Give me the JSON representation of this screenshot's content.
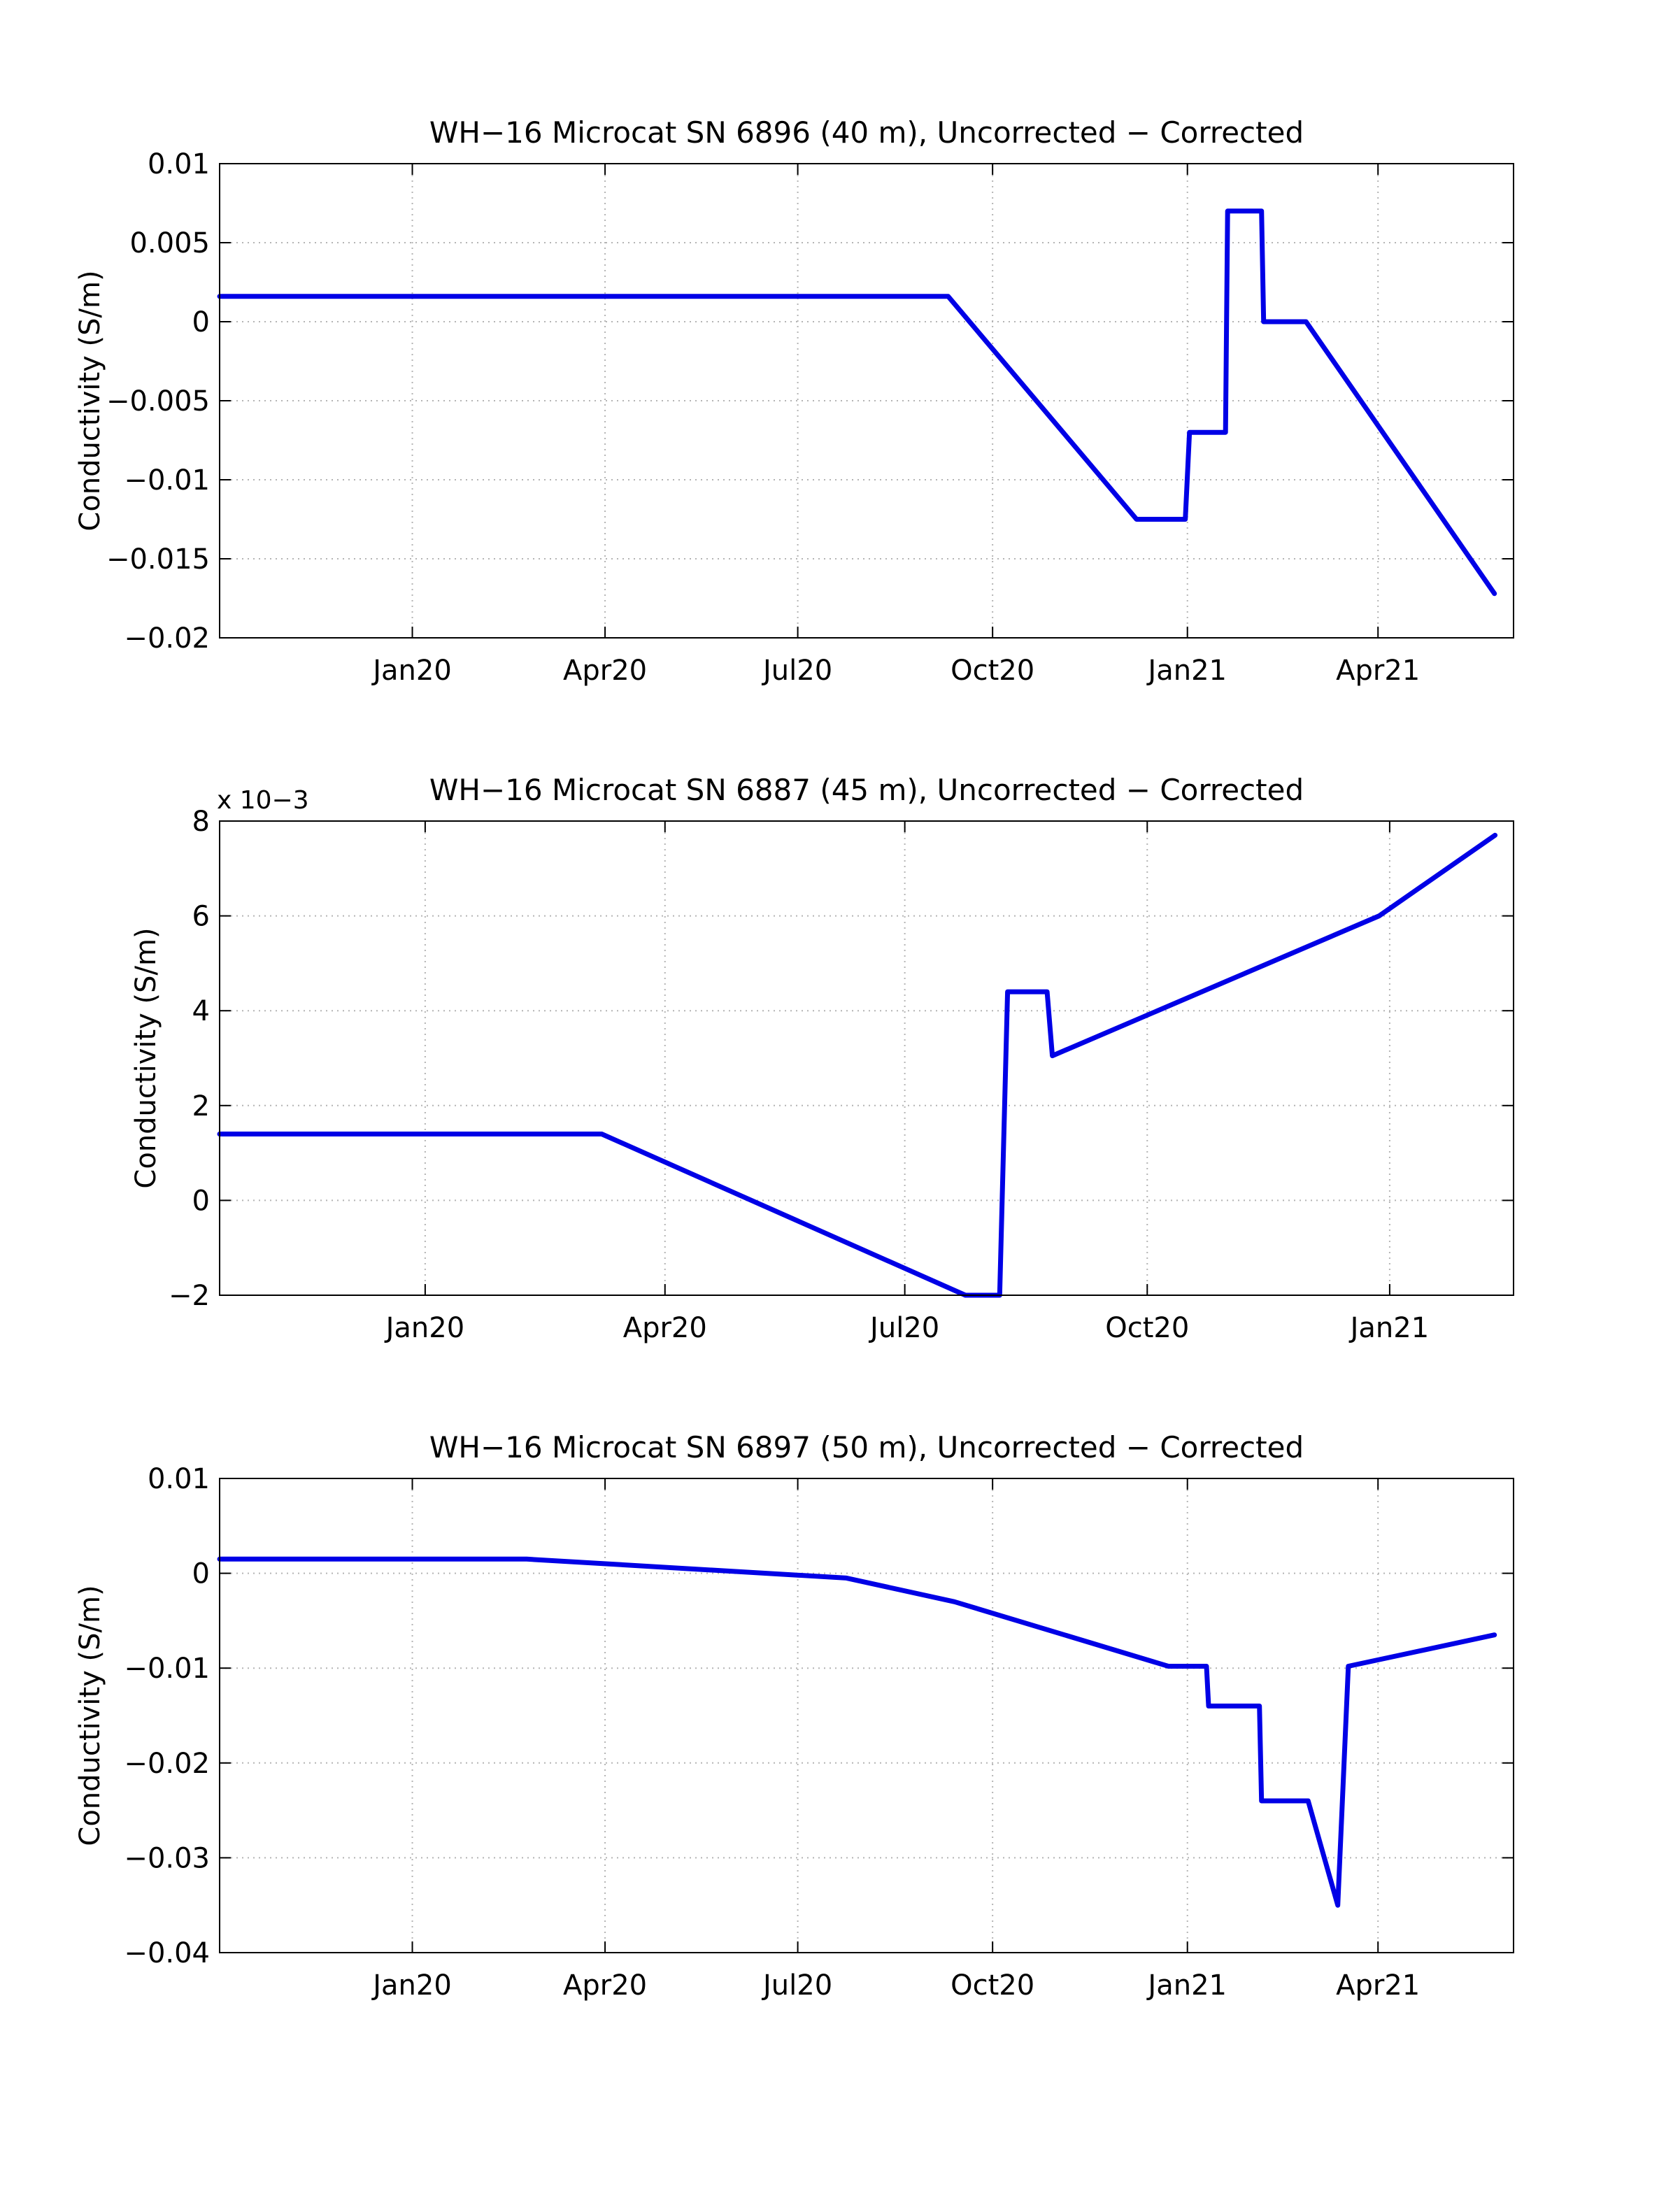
{
  "chart_data": [
    {
      "type": "line",
      "title": "WH−16 Microcat SN 6896 (40 m), Uncorrected − Corrected",
      "xlabel": "",
      "ylabel": "Conductivity (S/m)",
      "ylim": [
        -0.02,
        0.01
      ],
      "yticks": [
        -0.02,
        -0.015,
        -0.01,
        -0.005,
        0,
        0.005,
        0.01
      ],
      "ytick_labels": [
        "−0.02",
        "−0.015",
        "−0.01",
        "−0.005",
        "0",
        "0.005",
        "0.01"
      ],
      "exponent_label": "",
      "xlim": [
        "2019-10-02",
        "2021-06-04"
      ],
      "xticks": [
        "2020-01-01",
        "2020-04-01",
        "2020-07-01",
        "2020-10-01",
        "2021-01-01",
        "2021-04-01"
      ],
      "xtick_labels": [
        "Jan20",
        "Apr20",
        "Jul20",
        "Oct20",
        "Jan21",
        "Apr21"
      ],
      "grid": true,
      "series": [
        {
          "color": "#0000e6",
          "x": [
            "2019-10-02",
            "2020-09-10",
            "2020-12-08",
            "2020-12-31",
            "2021-01-02",
            "2021-01-19",
            "2021-01-20",
            "2021-02-05",
            "2021-02-06",
            "2021-02-26",
            "2021-05-26"
          ],
          "y": [
            0.0016,
            0.0016,
            -0.0125,
            -0.0125,
            -0.007,
            -0.007,
            0.007,
            0.007,
            0.0,
            0.0,
            -0.0172
          ]
        }
      ]
    },
    {
      "type": "line",
      "title": "WH−16 Microcat SN 6887 (45 m), Uncorrected − Corrected",
      "xlabel": "",
      "ylabel": "Conductivity (S/m)",
      "ylim": [
        -2,
        8
      ],
      "yticks": [
        -2,
        0,
        2,
        4,
        6,
        8
      ],
      "ytick_labels": [
        "−2",
        "0",
        "2",
        "4",
        "6",
        "8"
      ],
      "exponent_label": "x 10−3",
      "xlim": [
        "2019-10-15",
        "2021-02-17"
      ],
      "xticks": [
        "2020-01-01",
        "2020-04-01",
        "2020-07-01",
        "2020-10-01",
        "2021-01-01"
      ],
      "xtick_labels": [
        "Jan20",
        "Apr20",
        "Jul20",
        "Oct20",
        "Jan21"
      ],
      "grid": true,
      "series": [
        {
          "color": "#0000e6",
          "x": [
            "2019-10-15",
            "2020-03-08",
            "2020-07-24",
            "2020-08-06",
            "2020-08-09",
            "2020-08-24",
            "2020-08-26",
            "2020-12-28",
            "2021-02-10"
          ],
          "y": [
            1.4,
            1.4,
            -2.0,
            -2.0,
            4.4,
            4.4,
            3.05,
            6.0,
            7.7
          ]
        }
      ]
    },
    {
      "type": "line",
      "title": "WH−16 Microcat SN 6897 (50 m), Uncorrected − Corrected",
      "xlabel": "",
      "ylabel": "Conductivity (S/m)",
      "ylim": [
        -0.04,
        0.01
      ],
      "yticks": [
        -0.04,
        -0.03,
        -0.02,
        -0.01,
        0,
        0.01
      ],
      "ytick_labels": [
        "−0.04",
        "−0.03",
        "−0.02",
        "−0.01",
        "0",
        "0.01"
      ],
      "exponent_label": "",
      "xlim": [
        "2019-10-02",
        "2021-06-04"
      ],
      "xticks": [
        "2020-01-01",
        "2020-04-01",
        "2020-07-01",
        "2020-10-01",
        "2021-01-01",
        "2021-04-01"
      ],
      "xtick_labels": [
        "Jan20",
        "Apr20",
        "Jul20",
        "Oct20",
        "Jan21",
        "Apr21"
      ],
      "grid": true,
      "series": [
        {
          "color": "#0000e6",
          "x": [
            "2019-10-02",
            "2020-02-24",
            "2020-07-24",
            "2020-09-13",
            "2020-12-23",
            "2021-01-10",
            "2021-01-11",
            "2021-02-04",
            "2021-02-05",
            "2021-02-27",
            "2021-03-13",
            "2021-03-18",
            "2021-05-26"
          ],
          "y": [
            0.0015,
            0.0015,
            -0.0005,
            -0.003,
            -0.0098,
            -0.0098,
            -0.014,
            -0.014,
            -0.024,
            -0.024,
            -0.035,
            -0.0098,
            -0.0065
          ]
        }
      ]
    }
  ]
}
